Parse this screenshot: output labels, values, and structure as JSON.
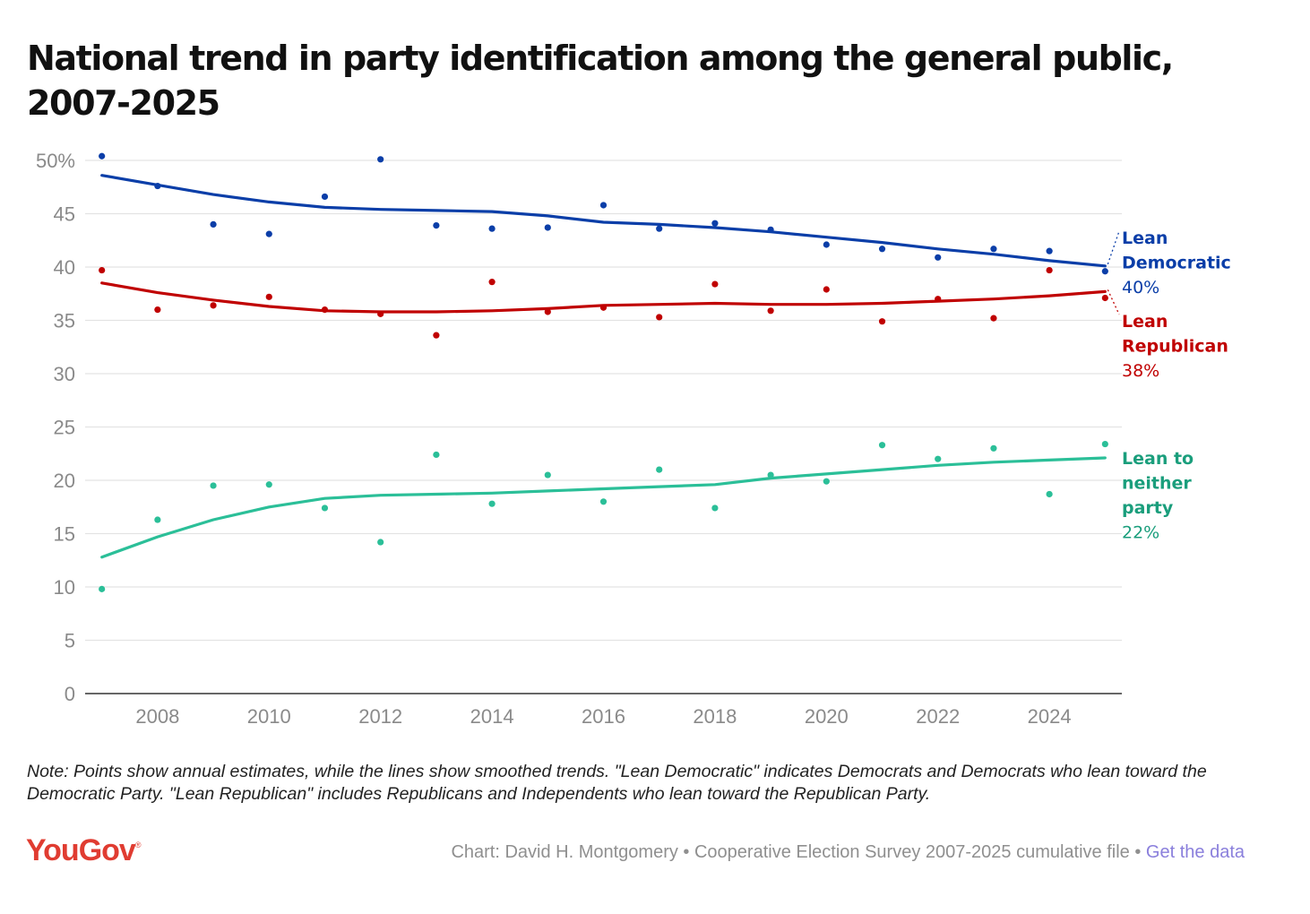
{
  "title": "National trend in party identification among the general public, 2007-2025",
  "note": "Note: Points show annual estimates, while the lines show smoothed trends. \"Lean Democratic\" indicates Democrats and Democrats who lean toward the Democratic Party. \"Lean Republican\" includes Republicans and Independents who lean toward the Republican Party.",
  "logo": {
    "text": "YouGov",
    "mark": "®"
  },
  "credit": {
    "text": "Chart: David H. Montgomery • Cooperative Election Survey 2007-2025 cumulative file •",
    "link": "Get the data"
  },
  "colors": {
    "dem": "#0b3ea8",
    "rep": "#c00000",
    "neither": "#2bbf98",
    "neither_label": "#1a9e7c",
    "grid": "#e3e3e3",
    "axis": "#333333",
    "tick": "#8a8a8a",
    "link": "#8a7fdc",
    "logo": "#e03c31"
  },
  "chart_data": {
    "type": "line",
    "xlim": [
      2006.7,
      2025.3
    ],
    "ylim": [
      0,
      50
    ],
    "yticks": [
      0,
      5,
      10,
      15,
      20,
      25,
      30,
      35,
      40,
      45,
      50
    ],
    "ytick_labels": [
      "0",
      "5",
      "10",
      "15",
      "20",
      "25",
      "30",
      "35",
      "40",
      "45",
      "50%"
    ],
    "xticks": [
      2008,
      2010,
      2012,
      2014,
      2016,
      2018,
      2020,
      2022,
      2024
    ],
    "xtick_labels": [
      "2008",
      "2010",
      "2012",
      "2014",
      "2016",
      "2018",
      "2020",
      "2022",
      "2024"
    ],
    "grid": true,
    "years": [
      2007,
      2008,
      2009,
      2010,
      2011,
      2012,
      2013,
      2014,
      2015,
      2016,
      2017,
      2018,
      2019,
      2020,
      2021,
      2022,
      2023,
      2024,
      2025
    ],
    "series": [
      {
        "key": "dem",
        "label_lines": [
          "Lean",
          "Democratic"
        ],
        "end_label": "40%",
        "points": [
          50.4,
          47.6,
          44.0,
          43.1,
          46.6,
          50.1,
          43.9,
          43.6,
          43.7,
          45.8,
          43.6,
          44.1,
          43.5,
          42.1,
          41.7,
          40.9,
          41.7,
          41.5,
          39.6
        ],
        "trend": [
          48.6,
          47.7,
          46.8,
          46.1,
          45.6,
          45.4,
          45.3,
          45.2,
          44.8,
          44.2,
          44.0,
          43.7,
          43.3,
          42.8,
          42.3,
          41.7,
          41.2,
          40.6,
          40.1
        ]
      },
      {
        "key": "rep",
        "label_lines": [
          "Lean",
          "Republican"
        ],
        "end_label": "38%",
        "points": [
          39.7,
          36.0,
          36.4,
          37.2,
          36.0,
          35.6,
          33.6,
          38.6,
          35.8,
          36.2,
          35.3,
          38.4,
          35.9,
          37.9,
          34.9,
          37.0,
          35.2,
          39.7,
          37.1
        ],
        "trend": [
          38.5,
          37.6,
          36.9,
          36.3,
          35.9,
          35.8,
          35.8,
          35.9,
          36.1,
          36.4,
          36.5,
          36.6,
          36.5,
          36.5,
          36.6,
          36.8,
          37.0,
          37.3,
          37.7
        ]
      },
      {
        "key": "neither",
        "label_lines": [
          "Lean to",
          "neither",
          "party"
        ],
        "end_label": "22%",
        "points": [
          9.8,
          16.3,
          19.5,
          19.6,
          17.4,
          14.2,
          22.4,
          17.8,
          20.5,
          18.0,
          21.0,
          17.4,
          20.5,
          19.9,
          23.3,
          22.0,
          23.0,
          18.7,
          23.4
        ],
        "trend": [
          12.8,
          14.7,
          16.3,
          17.5,
          18.3,
          18.6,
          18.7,
          18.8,
          19.0,
          19.2,
          19.4,
          19.6,
          20.2,
          20.6,
          21.0,
          21.4,
          21.7,
          21.9,
          22.1
        ]
      }
    ]
  }
}
